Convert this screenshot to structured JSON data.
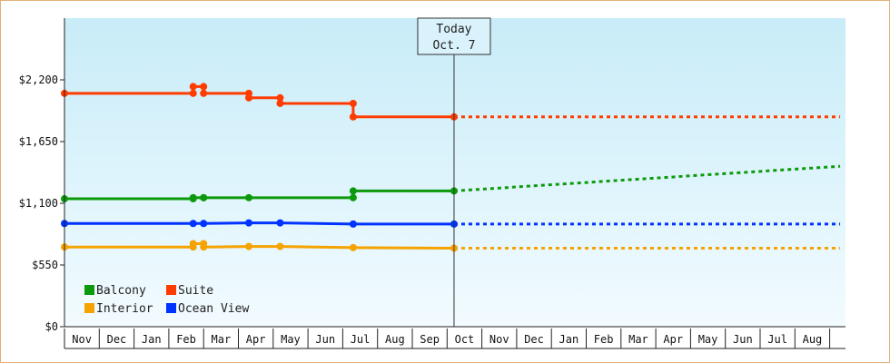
{
  "chart_data": {
    "type": "line",
    "title": "",
    "xlabel": "",
    "ylabel": "",
    "ylim": [
      0,
      2750
    ],
    "y_ticks": [
      "$2,200",
      "$1,650",
      "$1,100",
      "$550",
      "$0"
    ],
    "y_tick_values": [
      2200,
      1650,
      1100,
      550,
      0
    ],
    "months": [
      "Nov",
      "Dec",
      "Jan",
      "Feb",
      "Mar",
      "Apr",
      "May",
      "Jun",
      "Jul",
      "Aug",
      "Sep",
      "Oct",
      "Nov",
      "Dec",
      "Jan",
      "Feb",
      "Mar",
      "Apr",
      "May",
      "Jun",
      "Jul",
      "Aug"
    ],
    "x_range_months": [
      0,
      22.3
    ],
    "today": {
      "line1": "Today",
      "line2": "Oct. 7",
      "x": 11.2
    },
    "grid": false,
    "legend_position": "bottom-left",
    "series": [
      {
        "name": "Suite",
        "color": "#ff3c00",
        "points": [
          [
            0,
            2080
          ],
          [
            3.7,
            2080
          ],
          [
            3.7,
            2140
          ],
          [
            4.0,
            2140
          ],
          [
            4.0,
            2080
          ],
          [
            5.3,
            2080
          ],
          [
            5.3,
            2040
          ],
          [
            6.2,
            2040
          ],
          [
            6.2,
            1990
          ],
          [
            8.3,
            1990
          ],
          [
            8.3,
            1870
          ],
          [
            11.2,
            1870
          ]
        ],
        "markers": [
          0,
          1,
          2,
          3,
          4,
          5,
          6,
          7,
          8,
          9,
          10,
          11
        ],
        "forecast": [
          [
            11.2,
            1870
          ],
          [
            22.3,
            1870
          ]
        ]
      },
      {
        "name": "Balcony",
        "color": "#0c9a0c",
        "points": [
          [
            0,
            1140
          ],
          [
            3.7,
            1140
          ],
          [
            3.7,
            1150
          ],
          [
            4.0,
            1150
          ],
          [
            4.0,
            1150
          ],
          [
            5.3,
            1150
          ],
          [
            8.3,
            1150
          ],
          [
            8.3,
            1210
          ],
          [
            11.2,
            1210
          ]
        ],
        "markers": [
          0,
          1,
          2,
          3,
          4,
          5,
          6,
          7,
          8
        ],
        "forecast": [
          [
            11.2,
            1210
          ],
          [
            22.3,
            1430
          ]
        ]
      },
      {
        "name": "Ocean View",
        "color": "#0033ff",
        "points": [
          [
            0,
            920
          ],
          [
            3.7,
            920
          ],
          [
            4.0,
            920
          ],
          [
            5.3,
            925
          ],
          [
            6.2,
            925
          ],
          [
            8.3,
            915
          ],
          [
            11.2,
            915
          ]
        ],
        "markers": [
          0,
          1,
          2,
          3,
          4,
          5,
          6
        ],
        "forecast": [
          [
            11.2,
            915
          ],
          [
            22.3,
            915
          ]
        ]
      },
      {
        "name": "Interior",
        "color": "#f5a300",
        "points": [
          [
            0,
            710
          ],
          [
            3.7,
            710
          ],
          [
            3.7,
            740
          ],
          [
            4.0,
            740
          ],
          [
            4.0,
            710
          ],
          [
            5.3,
            715
          ],
          [
            6.2,
            715
          ],
          [
            8.3,
            705
          ],
          [
            11.2,
            700
          ]
        ],
        "markers": [
          0,
          1,
          2,
          3,
          4,
          5,
          6,
          7,
          8
        ],
        "forecast": [
          [
            11.2,
            700
          ],
          [
            22.3,
            700
          ]
        ]
      }
    ],
    "legend": [
      {
        "name": "Balcony",
        "color": "#0c9a0c"
      },
      {
        "name": "Suite",
        "color": "#ff3c00"
      },
      {
        "name": "Interior",
        "color": "#f5a300"
      },
      {
        "name": "Ocean View",
        "color": "#0033ff"
      }
    ]
  }
}
